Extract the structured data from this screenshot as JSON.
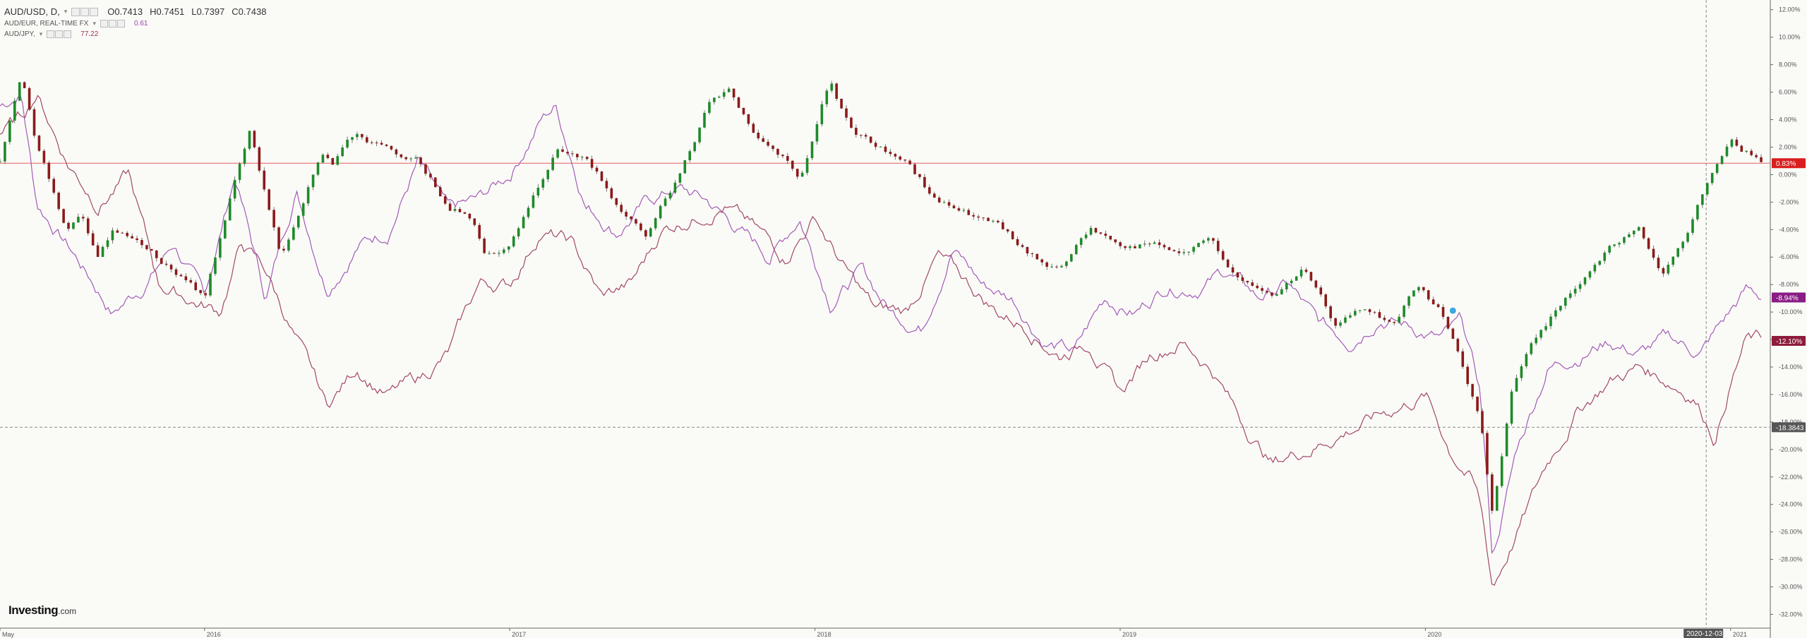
{
  "legend": {
    "main": {
      "symbol": "AUD/USD, D,",
      "dropdown": "▾",
      "open": "O0.7413",
      "high": "H0.7451",
      "low": "L0.7397",
      "close": "C0.7438"
    },
    "sub1": {
      "label": "AUD/EUR, REAL-TIME FX",
      "dropdown": "▾",
      "value": "0.61",
      "color": "#9b3fa8"
    },
    "sub2": {
      "label": "AUD/JPY,",
      "dropdown": "▾",
      "value": "77.22",
      "color": "#a0305a"
    }
  },
  "logo": {
    "bold": "Investing",
    "suffix": ".com"
  },
  "colors": {
    "up": "#1e8a2a",
    "down": "#8b1a1a",
    "eur": "#a45ab8",
    "jpy": "#a2476a",
    "ref_line": "#e06060",
    "crosshair": "#888888"
  },
  "chart_data": {
    "type": "line",
    "yunit": "%",
    "ylim": [
      -33,
      12.5
    ],
    "yticks": [
      "12.00%",
      "10.00%",
      "8.00%",
      "6.00%",
      "4.00%",
      "2.00%",
      "0.00%",
      "-2.00%",
      "-4.00%",
      "-6.00%",
      "-8.00%",
      "-10.00%",
      "-12.00%",
      "-14.00%",
      "-16.00%",
      "-18.00%",
      "-20.00%",
      "-22.00%",
      "-24.00%",
      "-26.00%",
      "-28.00%",
      "-30.00%",
      "-32.00%"
    ],
    "xlim": [
      2015.33,
      2021.13
    ],
    "xticks": [
      {
        "label": "May",
        "x": 2015.33
      },
      {
        "label": "2016",
        "x": 2016.0
      },
      {
        "label": "2017",
        "x": 2017.0
      },
      {
        "label": "2018",
        "x": 2018.0
      },
      {
        "label": "2019",
        "x": 2019.0
      },
      {
        "label": "2020",
        "x": 2020.0
      },
      {
        "label": "2021",
        "x": 2021.0
      }
    ],
    "grid": false,
    "series": [
      {
        "name": "AUD/USD",
        "kind": "candles",
        "color_up": "#1e8a2a",
        "color_down": "#8b1a1a",
        "x": [
          2015.33,
          2015.4,
          2015.45,
          2015.5,
          2015.55,
          2015.6,
          2015.65,
          2015.7,
          2015.8,
          2015.9,
          2016.0,
          2016.08,
          2016.15,
          2016.25,
          2016.3,
          2016.38,
          2016.42,
          2016.5,
          2016.6,
          2016.7,
          2016.8,
          2016.88,
          2016.92,
          2017.0,
          2017.08,
          2017.15,
          2017.25,
          2017.35,
          2017.45,
          2017.55,
          2017.65,
          2017.72,
          2017.8,
          2017.9,
          2017.95,
          2018.05,
          2018.12,
          2018.2,
          2018.3,
          2018.4,
          2018.5,
          2018.6,
          2018.7,
          2018.8,
          2018.9,
          2019.0,
          2019.1,
          2019.2,
          2019.3,
          2019.4,
          2019.5,
          2019.6,
          2019.7,
          2019.8,
          2019.9,
          2019.97,
          2020.05,
          2020.12,
          2020.18,
          2020.22,
          2020.28,
          2020.35,
          2020.42,
          2020.5,
          2020.6,
          2020.7,
          2020.78,
          2020.85,
          2020.92,
          2021.0,
          2021.05,
          2021.1
        ],
        "y": [
          1,
          7,
          2,
          -1,
          -4,
          -3,
          -6,
          -4,
          -5,
          -7,
          -9,
          -2,
          3,
          -6,
          -3,
          2,
          1,
          3,
          2,
          1,
          -2,
          -3,
          -6,
          -5,
          -1,
          2,
          1,
          -2,
          -4,
          0,
          5,
          6,
          3,
          1,
          -1,
          7,
          3,
          2,
          1,
          -2,
          -3,
          -4,
          -6,
          -7,
          -4,
          -5,
          -5,
          -6,
          -5,
          -8,
          -9,
          -7,
          -11,
          -10,
          -11,
          -8,
          -10,
          -14,
          -18,
          -25,
          -16,
          -12,
          -10,
          -8,
          -5,
          -4,
          -7,
          -5,
          -1,
          2,
          1.5,
          0.8
        ]
      },
      {
        "name": "AUD/EUR",
        "kind": "line",
        "color": "#a45ab8",
        "x": [
          2015.33,
          2015.4,
          2015.45,
          2015.55,
          2015.7,
          2015.8,
          2015.9,
          2016.0,
          2016.1,
          2016.2,
          2016.3,
          2016.4,
          2016.5,
          2016.6,
          2016.7,
          2016.8,
          2016.9,
          2017.0,
          2017.1,
          2017.15,
          2017.25,
          2017.35,
          2017.45,
          2017.55,
          2017.65,
          2017.75,
          2017.85,
          2017.95,
          2018.05,
          2018.15,
          2018.25,
          2018.35,
          2018.45,
          2018.55,
          2018.65,
          2018.75,
          2018.85,
          2018.95,
          2019.05,
          2019.15,
          2019.25,
          2019.35,
          2019.45,
          2019.55,
          2019.65,
          2019.75,
          2019.85,
          2019.95,
          2020.05,
          2020.12,
          2020.18,
          2020.22,
          2020.3,
          2020.4,
          2020.5,
          2020.6,
          2020.7,
          2020.8,
          2020.9,
          2021.0,
          2021.05,
          2021.1
        ],
        "y": [
          5,
          6,
          -2,
          -5,
          -10,
          -8,
          -5,
          -9,
          0,
          -9,
          -1,
          -8,
          -5,
          -4,
          1,
          -3,
          -2,
          0,
          4,
          5,
          -2,
          -4,
          -2,
          -1,
          -2,
          -4,
          -6,
          -3,
          -9,
          -7,
          -10,
          -11,
          -5,
          -8,
          -9,
          -12,
          -13,
          -9,
          -10,
          -8,
          -8,
          -7,
          -9,
          -8,
          -11,
          -12,
          -10,
          -11,
          -12,
          -11,
          -16,
          -28,
          -20,
          -14,
          -13,
          -12,
          -13,
          -12,
          -13,
          -10,
          -8.5,
          -8.94
        ]
      },
      {
        "name": "AUD/JPY",
        "kind": "line",
        "color": "#a2476a",
        "x": [
          2015.33,
          2015.4,
          2015.45,
          2015.55,
          2015.65,
          2015.75,
          2015.85,
          2015.95,
          2016.05,
          2016.12,
          2016.2,
          2016.3,
          2016.4,
          2016.5,
          2016.6,
          2016.7,
          2016.8,
          2016.9,
          2017.0,
          2017.1,
          2017.2,
          2017.3,
          2017.4,
          2017.5,
          2017.6,
          2017.7,
          2017.8,
          2017.9,
          2018.0,
          2018.1,
          2018.2,
          2018.3,
          2018.4,
          2018.5,
          2018.6,
          2018.7,
          2018.8,
          2018.9,
          2019.0,
          2019.1,
          2019.2,
          2019.3,
          2019.4,
          2019.5,
          2019.6,
          2019.7,
          2019.8,
          2019.9,
          2020.0,
          2020.08,
          2020.15,
          2020.18,
          2020.22,
          2020.3,
          2020.4,
          2020.5,
          2020.6,
          2020.7,
          2020.8,
          2020.88,
          2020.95,
          2021.0,
          2021.05,
          2021.1
        ],
        "y": [
          3,
          4,
          6,
          1,
          -2,
          0,
          -8,
          -9,
          -10,
          -5,
          -7,
          -12,
          -17,
          -14,
          -16,
          -15,
          -13,
          -8,
          -8,
          -4,
          -5,
          -9,
          -8,
          -4,
          -3,
          -2,
          -4,
          -6,
          -3,
          -7,
          -10,
          -10,
          -6,
          -8,
          -10,
          -11,
          -13,
          -12,
          -16,
          -13,
          -12,
          -14,
          -18,
          -21,
          -20,
          -19,
          -18,
          -17,
          -16,
          -20,
          -22,
          -24,
          -30,
          -26,
          -21,
          -17,
          -15,
          -14,
          -15,
          -16,
          -19,
          -15,
          -12,
          -12.1
        ]
      }
    ],
    "badges": [
      {
        "value": 0.83,
        "label": "0.83%",
        "bg": "#d91e1e"
      },
      {
        "value": -8.94,
        "label": "-8.94%",
        "bg": "#8a1c86"
      },
      {
        "value": -12.1,
        "label": "-12.10%",
        "bg": "#8f1c3a"
      },
      {
        "value": -18.3843,
        "label": "-18.3843",
        "bg": "#555555"
      }
    ],
    "reference_line": {
      "value": 0.83
    },
    "crosshair": {
      "date_label": "2020-12-03",
      "x": 2020.92,
      "y": -18.3843
    }
  }
}
